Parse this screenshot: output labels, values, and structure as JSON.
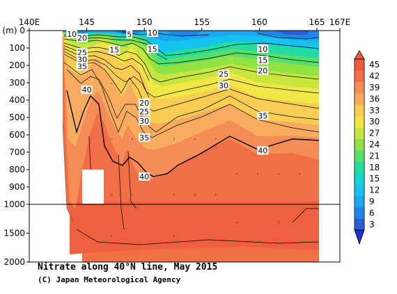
{
  "chart_data": {
    "type": "heatmap",
    "title": "Nitrate along 40°N line, May 2015",
    "credit": "(C) Japan Meteorological Agency",
    "y_unit_label": "(m)",
    "x_ticks": [
      "140E",
      "145",
      "150",
      "155",
      "160",
      "165",
      "167E"
    ],
    "x_tick_values": [
      140,
      145,
      150,
      155,
      160,
      165,
      167
    ],
    "xlim": [
      140,
      167
    ],
    "y_ticks_upper": [
      0,
      100,
      200,
      300,
      400,
      500,
      600,
      700,
      800,
      900,
      1000
    ],
    "y_ticks_lower": [
      1500,
      2000
    ],
    "ylim": [
      0,
      2000
    ],
    "y_break": 1000,
    "colorbar_ticks": [
      3,
      6,
      9,
      12,
      15,
      18,
      21,
      24,
      27,
      30,
      33,
      36,
      39,
      42,
      45
    ],
    "colorbar_colors": [
      "#2a5cd6",
      "#1f86e8",
      "#1aa7ef",
      "#14c3ee",
      "#12d6cf",
      "#22dca0",
      "#56e06a",
      "#92e246",
      "#c6e63e",
      "#f0e644",
      "#f8cd52",
      "#f8ad5e",
      "#f68c56",
      "#f26e46",
      "#ee5a3c"
    ],
    "contour_levels": [
      5,
      10,
      15,
      20,
      25,
      30,
      35,
      40
    ],
    "contour_labels": [
      {
        "text": "10",
        "lon": 143.7,
        "depth": 20
      },
      {
        "text": "20",
        "lon": 144.6,
        "depth": 42
      },
      {
        "text": "5",
        "lon": 148.7,
        "depth": 22
      },
      {
        "text": "10",
        "lon": 150.7,
        "depth": 12
      },
      {
        "text": "25",
        "lon": 144.6,
        "depth": 125
      },
      {
        "text": "30",
        "lon": 144.6,
        "depth": 165
      },
      {
        "text": "35",
        "lon": 144.6,
        "depth": 205
      },
      {
        "text": "15",
        "lon": 147.4,
        "depth": 110
      },
      {
        "text": "15",
        "lon": 150.7,
        "depth": 105
      },
      {
        "text": "10",
        "lon": 160.3,
        "depth": 105
      },
      {
        "text": "15",
        "lon": 160.3,
        "depth": 170
      },
      {
        "text": "20",
        "lon": 160.3,
        "depth": 230
      },
      {
        "text": "25",
        "lon": 156.9,
        "depth": 250
      },
      {
        "text": "30",
        "lon": 156.9,
        "depth": 315
      },
      {
        "text": "40",
        "lon": 145.0,
        "depth": 340
      },
      {
        "text": "20",
        "lon": 150.0,
        "depth": 415
      },
      {
        "text": "25",
        "lon": 150.0,
        "depth": 465
      },
      {
        "text": "30",
        "lon": 150.0,
        "depth": 520
      },
      {
        "text": "35",
        "lon": 150.0,
        "depth": 615
      },
      {
        "text": "35",
        "lon": 160.3,
        "depth": 490
      },
      {
        "text": "40",
        "lon": 160.3,
        "depth": 690
      },
      {
        "text": "40",
        "lon": 150.0,
        "depth": 840
      }
    ]
  }
}
